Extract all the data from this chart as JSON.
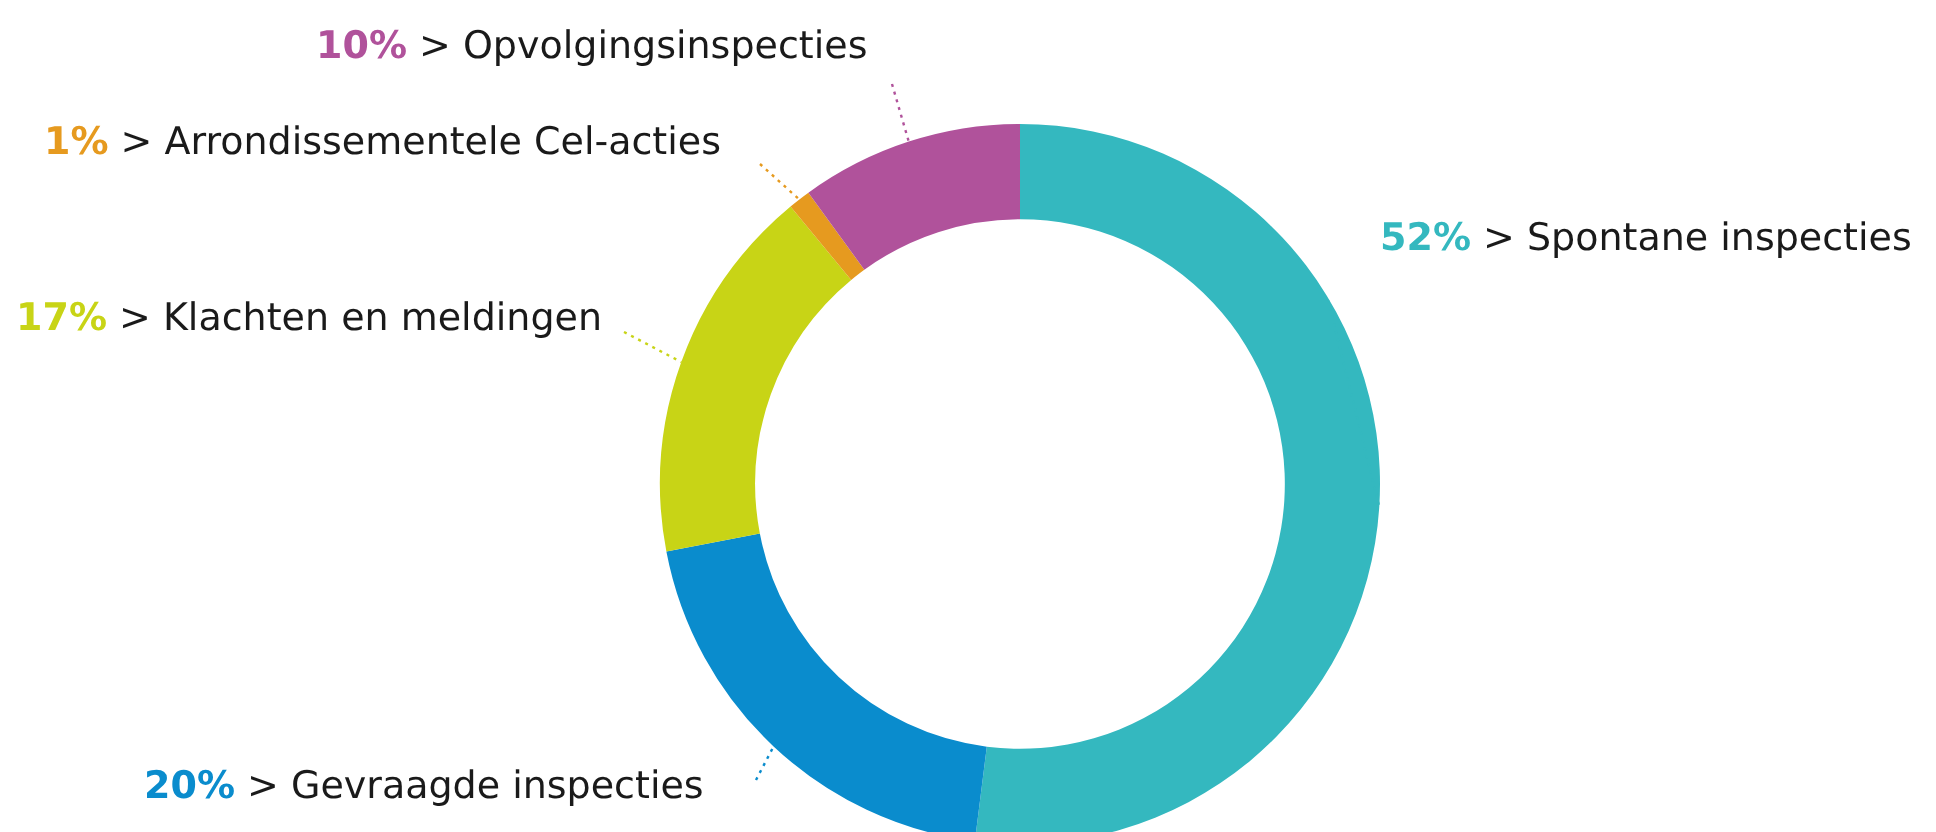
{
  "chart_data": {
    "type": "donut",
    "categories": [
      "> Spontane inspecties",
      "> Gevraagde inspecties",
      "> Klachten en meldingen",
      "> Arrondissementele Cel-acties",
      "> Opvolgingsinspecties"
    ],
    "values": [
      52,
      20,
      17,
      1,
      10
    ],
    "value_labels": [
      "52%",
      "20%",
      "17%",
      "1%",
      "10%"
    ],
    "colors": [
      "#34b8bf",
      "#0a8ccd",
      "#c8d416",
      "#e69a1f",
      "#b0529b"
    ]
  }
}
